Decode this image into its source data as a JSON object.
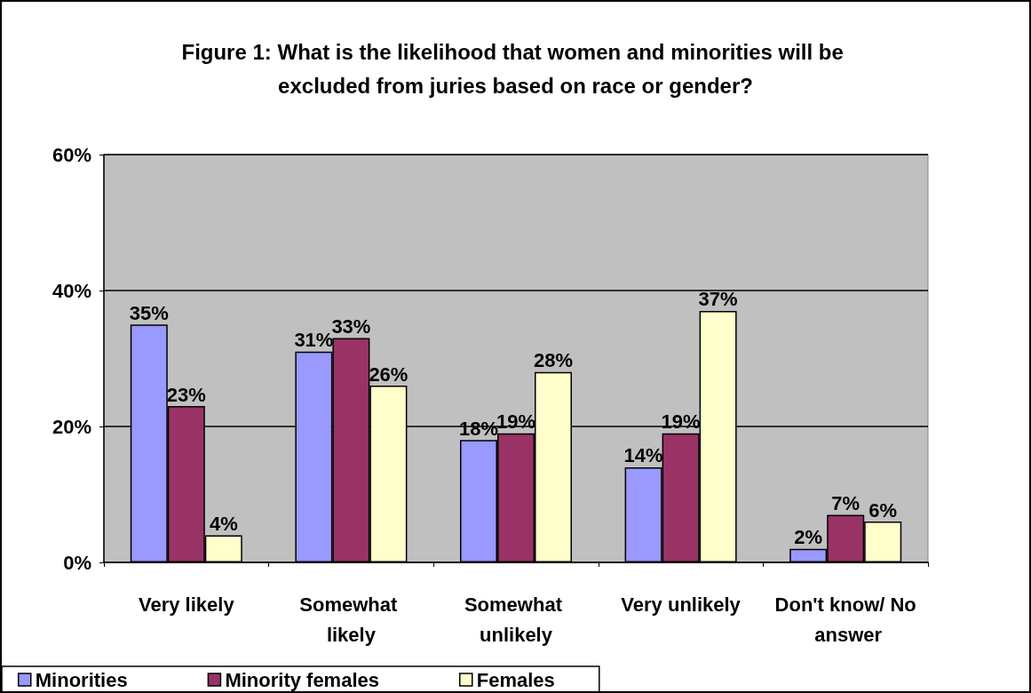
{
  "chart_data": {
    "type": "bar",
    "title": "Figure 1: What is the likelihood that women and minorities will be excluded from juries based on race or gender?",
    "categories": [
      "Very likely",
      "Somewhat likely",
      "Somewhat unlikely",
      "Very unlikely",
      "Don't know/ No answer"
    ],
    "series": [
      {
        "name": "Minorities",
        "color": "#9999ff",
        "values": [
          35,
          31,
          18,
          14,
          2
        ],
        "value_labels": [
          "35%",
          "31%",
          "18%",
          "14%",
          "2%"
        ]
      },
      {
        "name": "Minority females",
        "color": "#993366",
        "values": [
          23,
          33,
          19,
          19,
          7
        ],
        "value_labels": [
          "23%",
          "33%",
          "19%",
          "19%",
          "7%"
        ]
      },
      {
        "name": "Females",
        "color": "#ffffcc",
        "values": [
          4,
          26,
          28,
          37,
          6
        ],
        "value_labels": [
          "4%",
          "26%",
          "28%",
          "37%",
          "6%"
        ]
      }
    ],
    "ylim": [
      0,
      60
    ],
    "yticks": [
      {
        "value": 0,
        "label": "0%"
      },
      {
        "value": 20,
        "label": "20%"
      },
      {
        "value": 40,
        "label": "40%"
      },
      {
        "value": 60,
        "label": "60%"
      }
    ],
    "grid": "y",
    "legend": "bottom left"
  }
}
